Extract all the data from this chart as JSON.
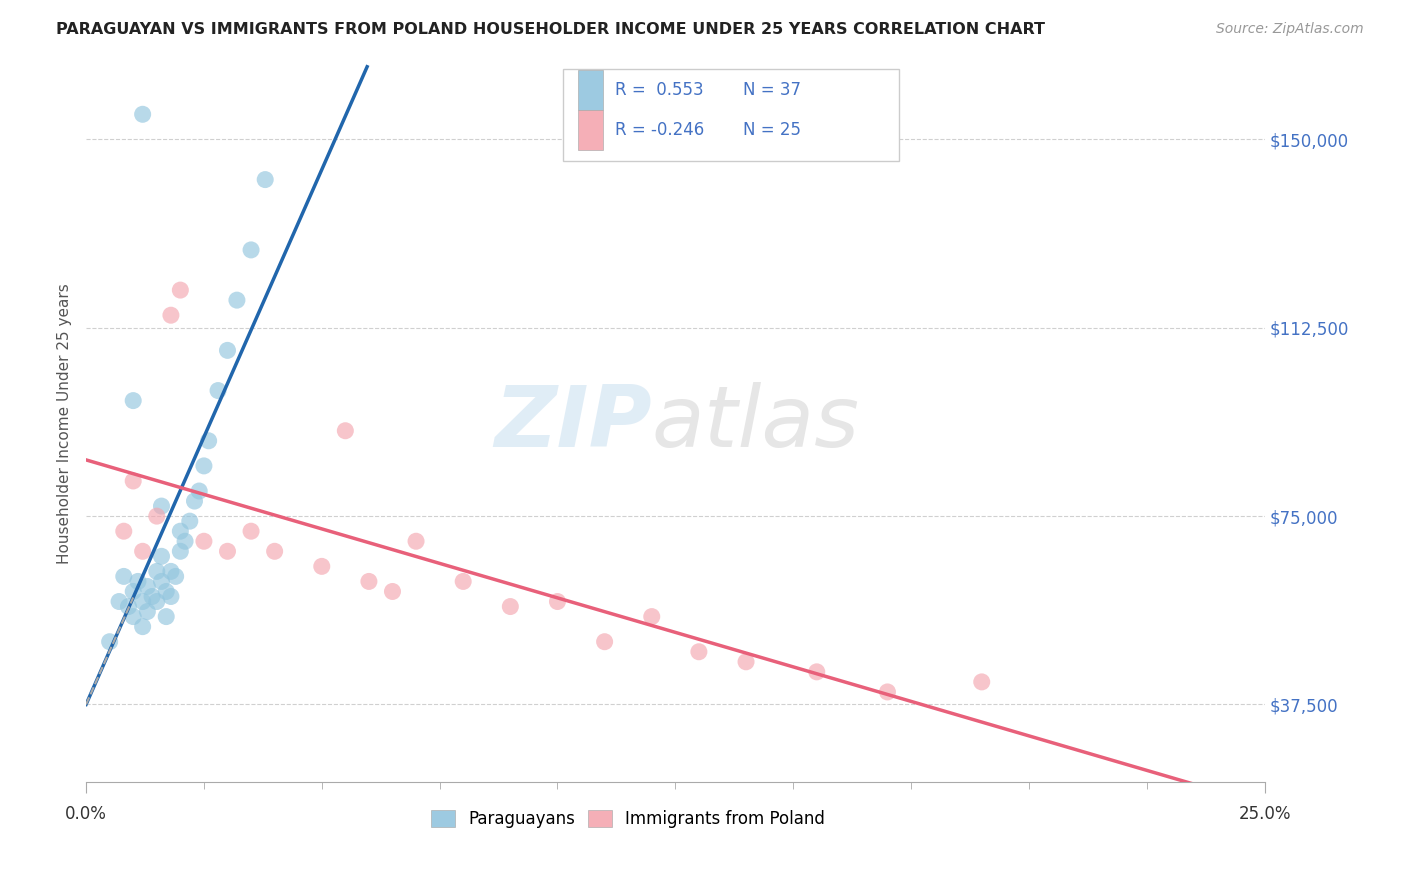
{
  "title": "PARAGUAYAN VS IMMIGRANTS FROM POLAND HOUSEHOLDER INCOME UNDER 25 YEARS CORRELATION CHART",
  "source": "Source: ZipAtlas.com",
  "ylabel": "Householder Income Under 25 years",
  "xlim": [
    0.0,
    0.25
  ],
  "ylim": [
    22000,
    165000
  ],
  "ylabel_ticks": [
    "$37,500",
    "$75,000",
    "$112,500",
    "$150,000"
  ],
  "ylabel_values": [
    37500,
    75000,
    112500,
    150000
  ],
  "r_blue": 0.553,
  "n_blue": 37,
  "r_pink": -0.246,
  "n_pink": 25,
  "blue_color": "#92c5de",
  "pink_color": "#f4a6b0",
  "blue_line_color": "#2166ac",
  "pink_line_color": "#e8607a",
  "blue_scatter_x": [
    0.005,
    0.007,
    0.008,
    0.009,
    0.01,
    0.01,
    0.011,
    0.012,
    0.012,
    0.013,
    0.013,
    0.014,
    0.015,
    0.015,
    0.016,
    0.016,
    0.017,
    0.017,
    0.018,
    0.018,
    0.019,
    0.02,
    0.02,
    0.021,
    0.022,
    0.023,
    0.024,
    0.025,
    0.026,
    0.028,
    0.03,
    0.032,
    0.035,
    0.038,
    0.01,
    0.012,
    0.016
  ],
  "blue_scatter_y": [
    50000,
    58000,
    63000,
    57000,
    60000,
    55000,
    62000,
    58000,
    53000,
    61000,
    56000,
    59000,
    64000,
    58000,
    62000,
    67000,
    60000,
    55000,
    64000,
    59000,
    63000,
    68000,
    72000,
    70000,
    74000,
    78000,
    80000,
    85000,
    90000,
    100000,
    108000,
    118000,
    128000,
    142000,
    98000,
    155000,
    77000
  ],
  "pink_scatter_x": [
    0.008,
    0.01,
    0.012,
    0.015,
    0.018,
    0.02,
    0.025,
    0.03,
    0.035,
    0.04,
    0.05,
    0.06,
    0.065,
    0.07,
    0.08,
    0.09,
    0.1,
    0.11,
    0.12,
    0.13,
    0.14,
    0.155,
    0.17,
    0.19,
    0.055
  ],
  "pink_scatter_y": [
    72000,
    82000,
    68000,
    75000,
    115000,
    120000,
    70000,
    68000,
    72000,
    68000,
    65000,
    62000,
    60000,
    70000,
    62000,
    57000,
    58000,
    50000,
    55000,
    48000,
    46000,
    44000,
    40000,
    42000,
    92000
  ],
  "background_color": "#ffffff",
  "grid_color": "#d0d0d0",
  "title_color": "#222222",
  "axis_label_color": "#555555",
  "tick_label_right_color": "#4472c4",
  "legend_color": "#4472c4"
}
